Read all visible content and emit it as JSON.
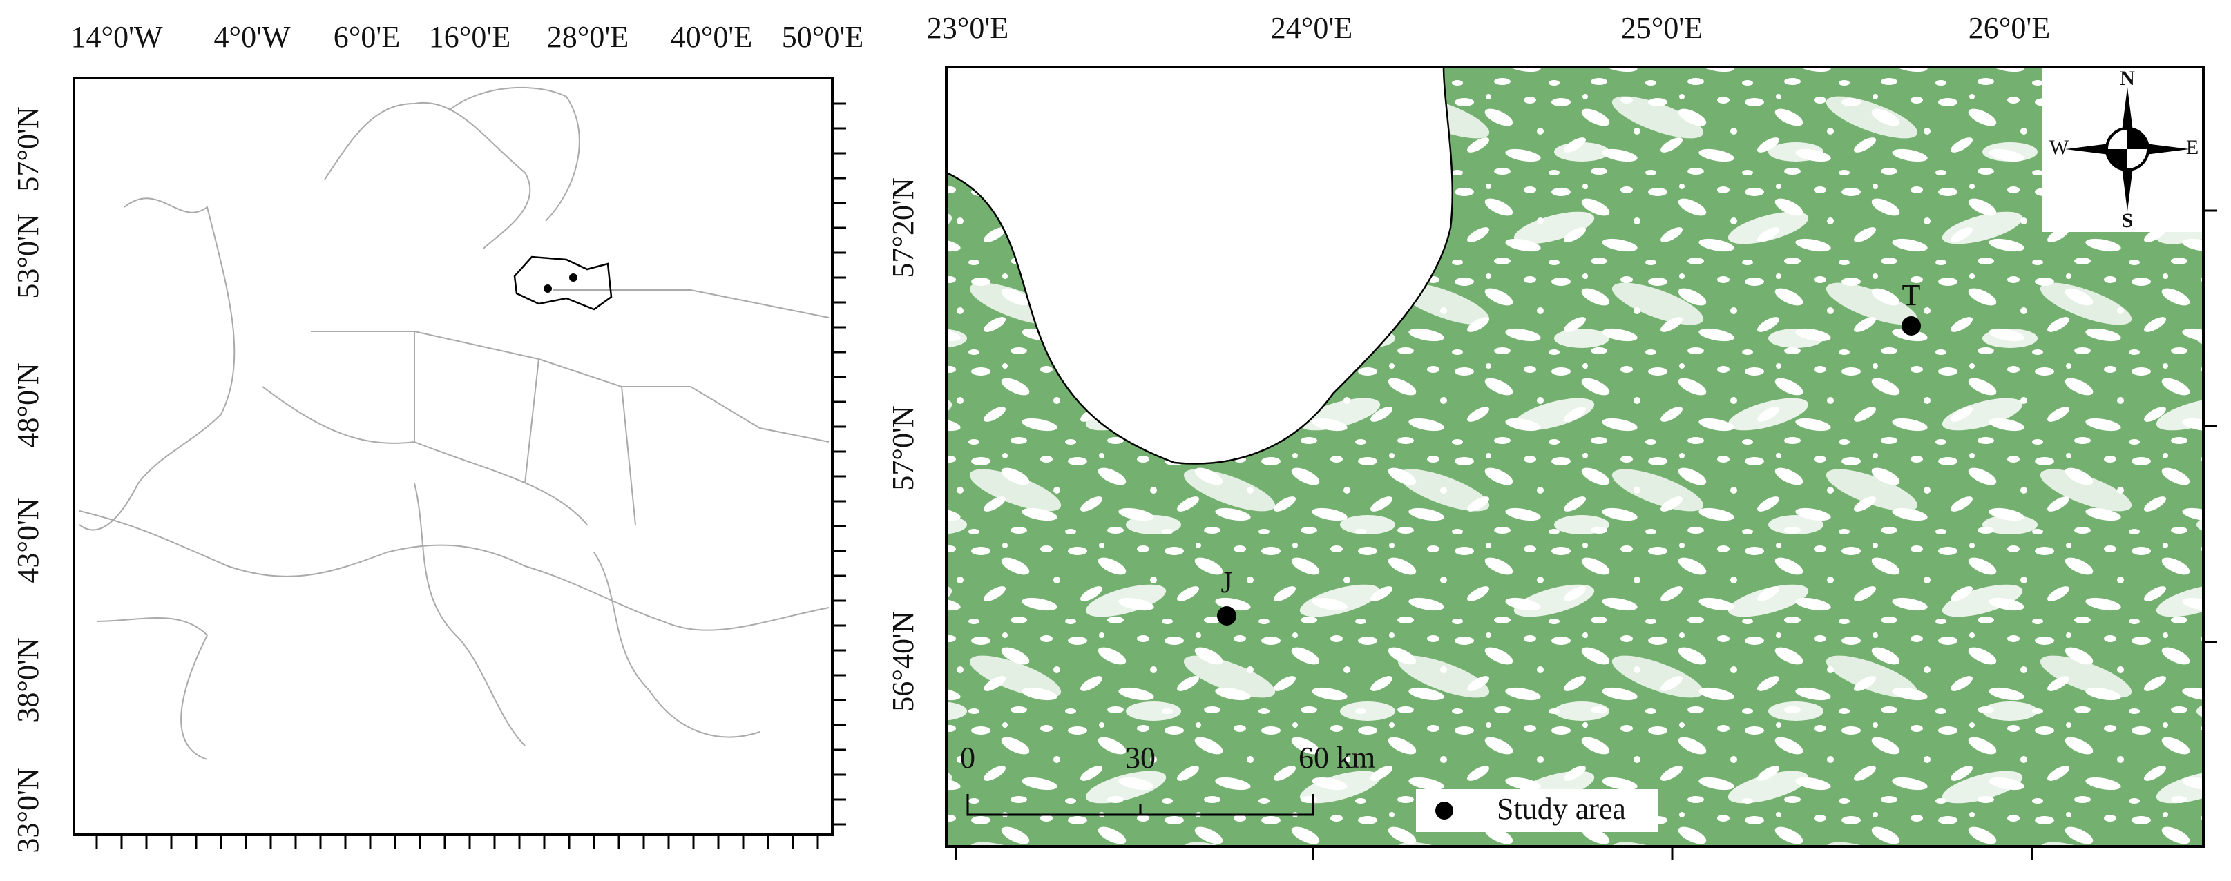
{
  "left_map": {
    "lon_labels": [
      "14°0'W",
      "4°0'W",
      "6°0'E",
      "16°0'E",
      "28°0'E",
      "40°0'E",
      "50°0'E"
    ],
    "lat_labels": [
      "57°0'N",
      "53°0'N",
      "48°0'N",
      "43°0'N",
      "38°0'N",
      "33°0'N"
    ]
  },
  "right_map": {
    "lon_labels": [
      "23°0'E",
      "24°0'E",
      "25°0'E",
      "26°0'E"
    ],
    "lat_labels": [
      "57°20'N",
      "57°0'N",
      "56°40'N"
    ],
    "sites": [
      "J",
      "T"
    ],
    "compass": {
      "n": "N",
      "s": "S",
      "e": "E",
      "w": "W"
    },
    "scale_bar": [
      "0",
      "30",
      "60 km"
    ],
    "legend": "Study area"
  }
}
